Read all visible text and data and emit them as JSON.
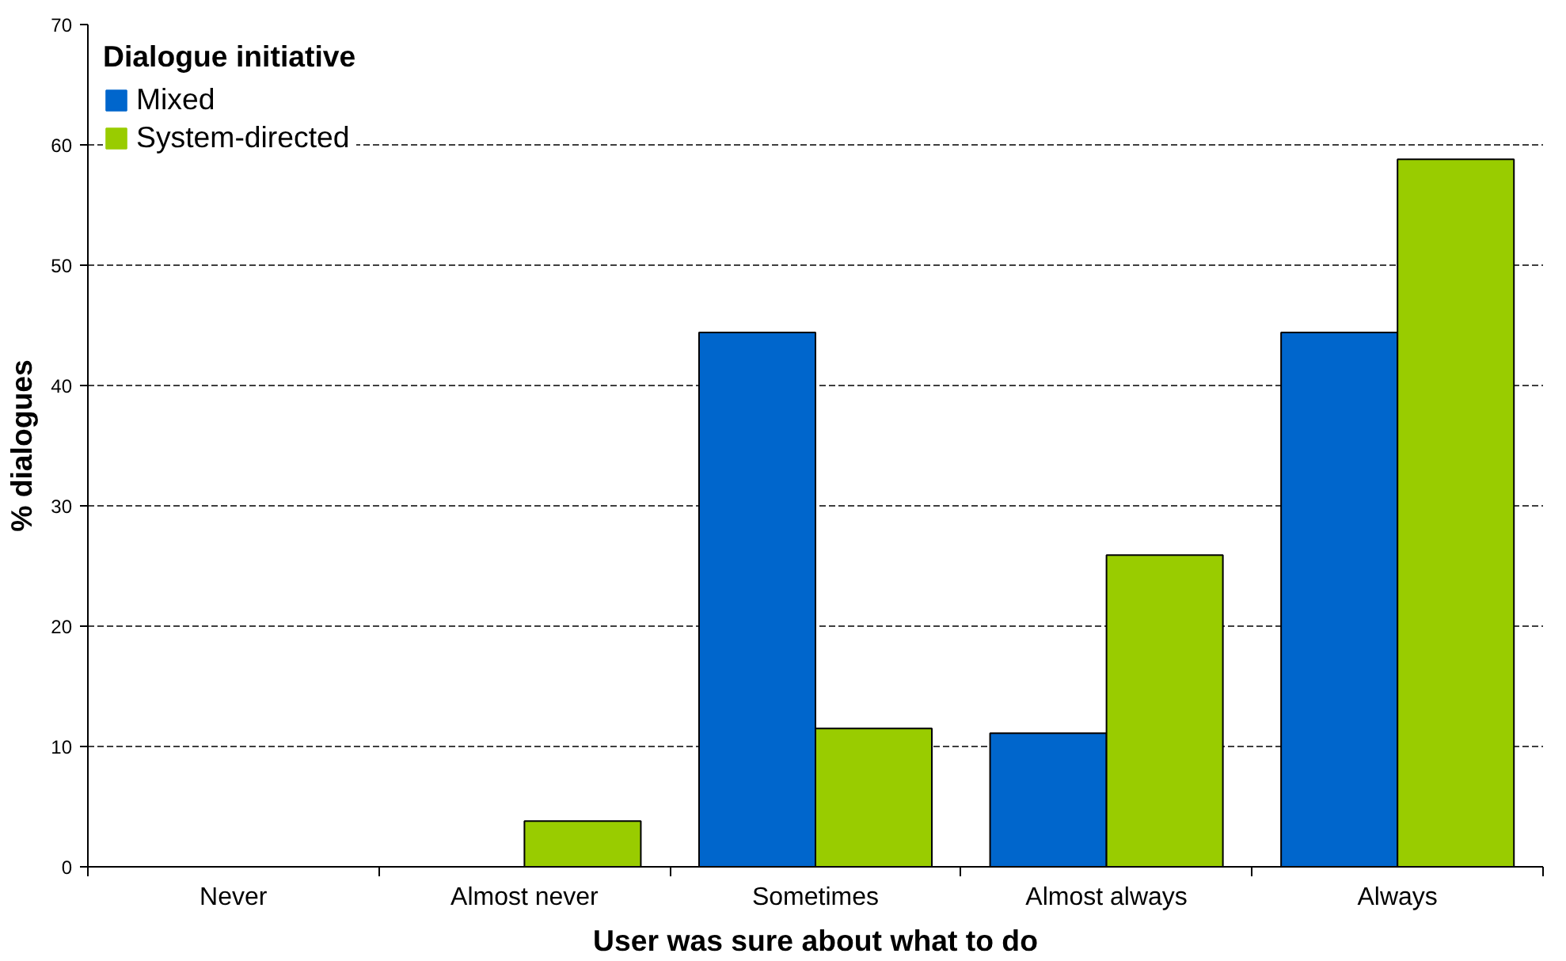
{
  "chart_data": {
    "type": "bar",
    "xlabel": "User was sure about what to do",
    "ylabel": "% dialogues",
    "legend_title": "Dialogue initiative",
    "categories": [
      "Never",
      "Almost never",
      "Sometimes",
      "Almost always",
      "Always"
    ],
    "series": [
      {
        "name": "Mixed",
        "color": "#0066cc",
        "values": [
          0,
          0,
          44.4,
          11.1,
          44.4
        ]
      },
      {
        "name": "System-directed",
        "color": "#99cc00",
        "values": [
          0,
          3.8,
          11.5,
          25.9,
          58.8
        ]
      }
    ],
    "ylim": [
      0,
      70
    ],
    "yticks": [
      0,
      10,
      20,
      30,
      40,
      50,
      60,
      70
    ],
    "grid": "y",
    "legend": "top left"
  }
}
